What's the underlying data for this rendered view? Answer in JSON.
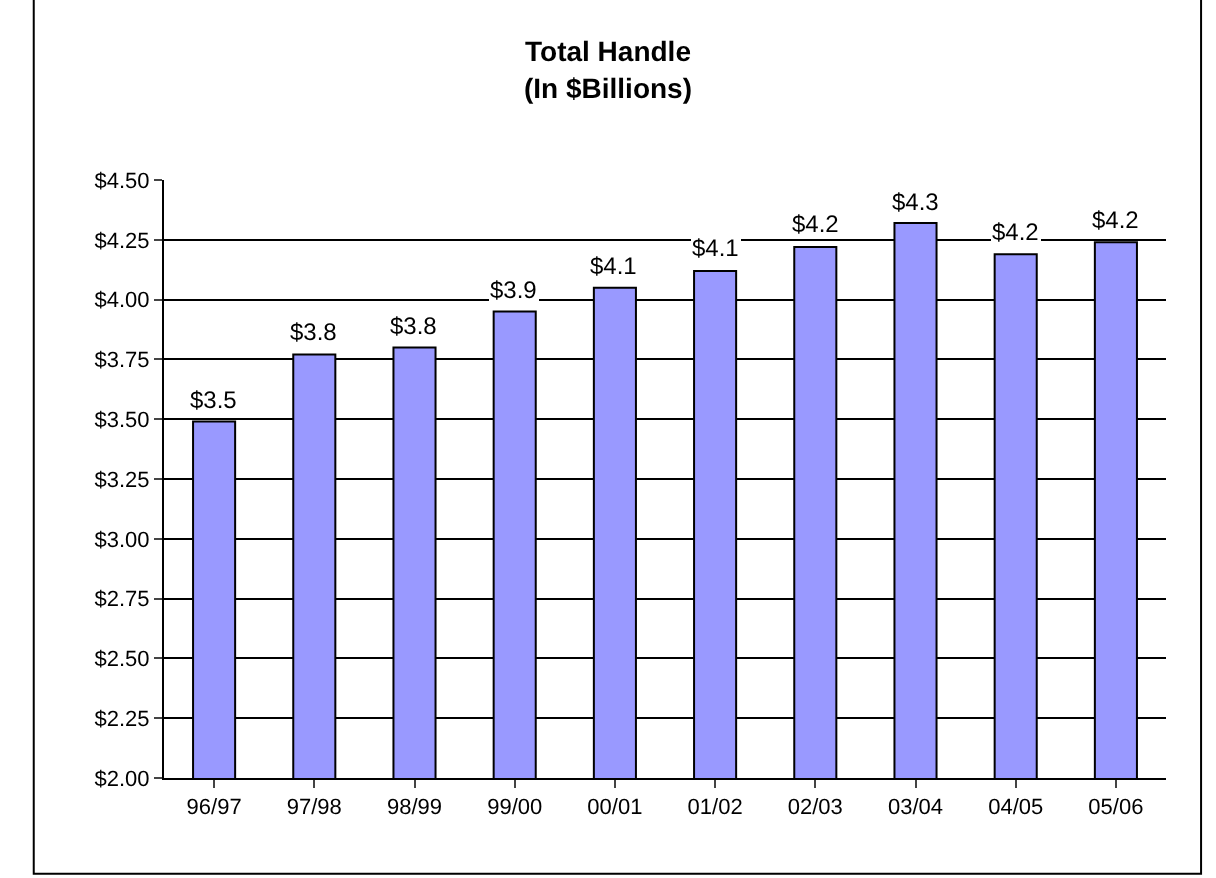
{
  "chart_data": {
    "type": "bar",
    "title": "Total Handle\n(In $Billions)",
    "categories": [
      "96/97",
      "97/98",
      "98/99",
      "99/00",
      "00/01",
      "01/02",
      "02/03",
      "03/04",
      "04/05",
      "05/06"
    ],
    "values": [
      3.49,
      3.77,
      3.8,
      3.95,
      4.05,
      4.12,
      4.22,
      4.32,
      4.19,
      4.24
    ],
    "value_labels": [
      "$3.5",
      "$3.8",
      "$3.8",
      "$3.9",
      "$4.1",
      "$4.1",
      "$4.2",
      "$4.3",
      "$4.2",
      "$4.2"
    ],
    "color": "#9999ff",
    "ylim": [
      2.0,
      4.5
    ],
    "yticks": [
      {
        "value": 2.0,
        "label": "$2.00"
      },
      {
        "value": 2.25,
        "label": "$2.25"
      },
      {
        "value": 2.5,
        "label": "$2.50"
      },
      {
        "value": 2.75,
        "label": "$2.75"
      },
      {
        "value": 3.0,
        "label": "$3.00"
      },
      {
        "value": 3.25,
        "label": "$3.25"
      },
      {
        "value": 3.5,
        "label": "$3.50"
      },
      {
        "value": 3.75,
        "label": "$3.75"
      },
      {
        "value": 4.0,
        "label": "$4.00"
      },
      {
        "value": 4.25,
        "label": "$4.25"
      },
      {
        "value": 4.5,
        "label": "$4.50"
      }
    ],
    "grid": "y"
  }
}
